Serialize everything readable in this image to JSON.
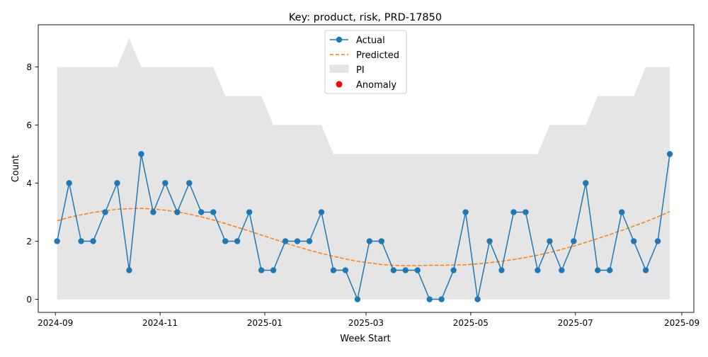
{
  "chart_data": {
    "type": "line",
    "title": "Key: product, risk, PRD-17850",
    "xlabel": "Week Start",
    "ylabel": "Count",
    "x_ticks": [
      "2024-09",
      "2024-11",
      "2025-01",
      "2025-03",
      "2025-05",
      "2025-07",
      "2025-09"
    ],
    "y_ticks": [
      "0",
      "2",
      "4",
      "6",
      "8"
    ],
    "ylim": [
      -0.45,
      9.45
    ],
    "xlim": [
      "2024-08-22",
      "2025-09-08"
    ],
    "legend_position": "top-center",
    "legend": {
      "actual": "Actual",
      "predicted": "Predicted",
      "pi": "PI",
      "anomaly": "Anomaly"
    },
    "colors": {
      "actual": "#1f77b4",
      "predicted": "#ff7f0e",
      "pi": "#d3d3d3",
      "anomaly": "#ff0000"
    },
    "dates": [
      "2024-09-02",
      "2024-09-09",
      "2024-09-16",
      "2024-09-23",
      "2024-09-30",
      "2024-10-07",
      "2024-10-14",
      "2024-10-21",
      "2024-10-28",
      "2024-11-04",
      "2024-11-11",
      "2024-11-18",
      "2024-11-25",
      "2024-12-02",
      "2024-12-09",
      "2024-12-16",
      "2024-12-23",
      "2024-12-30",
      "2025-01-06",
      "2025-01-13",
      "2025-01-20",
      "2025-01-27",
      "2025-02-03",
      "2025-02-10",
      "2025-02-17",
      "2025-02-24",
      "2025-03-03",
      "2025-03-10",
      "2025-03-17",
      "2025-03-24",
      "2025-03-31",
      "2025-04-07",
      "2025-04-14",
      "2025-04-21",
      "2025-04-28",
      "2025-05-05",
      "2025-05-12",
      "2025-05-19",
      "2025-05-26",
      "2025-06-02",
      "2025-06-09",
      "2025-06-16",
      "2025-06-23",
      "2025-06-30",
      "2025-07-07",
      "2025-07-14",
      "2025-07-21",
      "2025-07-28",
      "2025-08-04",
      "2025-08-11",
      "2025-08-18",
      "2025-08-25"
    ],
    "actual": [
      2,
      4,
      2,
      2,
      3,
      4,
      1,
      5,
      3,
      4,
      3,
      4,
      3,
      3,
      2,
      2,
      3,
      1,
      1,
      2,
      2,
      2,
      3,
      1,
      1,
      0,
      2,
      2,
      1,
      1,
      1,
      0,
      0,
      1,
      3,
      0,
      2,
      1,
      3,
      3,
      1,
      2,
      1,
      2,
      4,
      1,
      1,
      3,
      2,
      1,
      2,
      5
    ],
    "predicted": [
      2.7,
      2.82,
      2.91,
      2.99,
      3.05,
      3.1,
      3.12,
      3.13,
      3.11,
      3.07,
      3.01,
      2.93,
      2.84,
      2.73,
      2.61,
      2.48,
      2.35,
      2.21,
      2.08,
      1.94,
      1.81,
      1.69,
      1.58,
      1.48,
      1.39,
      1.31,
      1.25,
      1.2,
      1.17,
      1.16,
      1.16,
      1.17,
      1.17,
      1.18,
      1.19,
      1.22,
      1.26,
      1.31,
      1.37,
      1.44,
      1.52,
      1.61,
      1.72,
      1.83,
      1.96,
      2.09,
      2.23,
      2.37,
      2.52,
      2.67,
      2.84,
      3.02
    ],
    "pi_lower": [
      0,
      0,
      0,
      0,
      0,
      0,
      0,
      0,
      0,
      0,
      0,
      0,
      0,
      0,
      0,
      0,
      0,
      0,
      0,
      0,
      0,
      0,
      0,
      0,
      0,
      0,
      0,
      0,
      0,
      0,
      0,
      0,
      0,
      0,
      0,
      0,
      0,
      0,
      0,
      0,
      0,
      0,
      0,
      0,
      0,
      0,
      0,
      0,
      0,
      0,
      0,
      0
    ],
    "pi_upper": [
      8,
      8,
      8,
      8,
      8,
      8,
      9,
      8,
      8,
      8,
      8,
      8,
      8,
      8,
      7,
      7,
      7,
      7,
      6,
      6,
      6,
      6,
      6,
      5,
      5,
      5,
      5,
      5,
      5,
      5,
      5,
      5,
      5,
      5,
      5,
      5,
      5,
      5,
      5,
      5,
      5,
      6,
      6,
      6,
      6,
      7,
      7,
      7,
      7,
      8,
      8,
      8
    ],
    "anomalies": []
  }
}
